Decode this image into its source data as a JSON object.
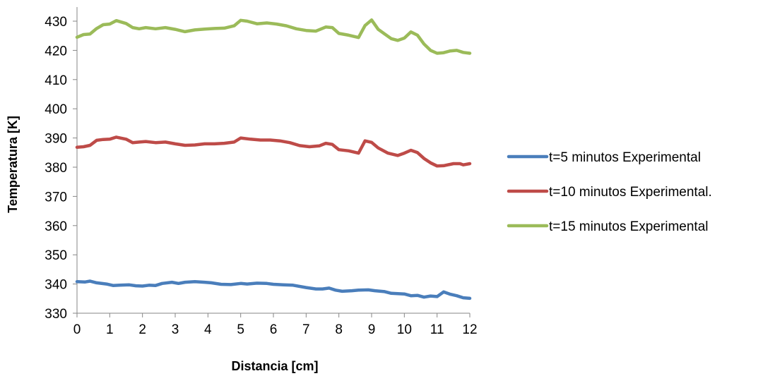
{
  "chart_data": {
    "type": "line",
    "title": "",
    "xlabel": "Distancia [cm]",
    "ylabel": "Temperatura [K]",
    "xlim": [
      0,
      12
    ],
    "ylim": [
      330,
      430
    ],
    "xticks": [
      0,
      1,
      2,
      3,
      4,
      5,
      6,
      7,
      8,
      9,
      10,
      11,
      12
    ],
    "yticks": [
      330,
      340,
      350,
      360,
      370,
      380,
      390,
      400,
      410,
      420,
      430
    ],
    "grid": false,
    "legend_position": "right",
    "series": [
      {
        "name": "t=5 minutos Experimental",
        "color": "#4A7EBB",
        "points": [
          [
            0,
            340.8
          ],
          [
            0.25,
            340.7
          ],
          [
            0.4,
            341.0
          ],
          [
            0.6,
            340.4
          ],
          [
            0.9,
            340.0
          ],
          [
            1.1,
            339.5
          ],
          [
            1.3,
            339.6
          ],
          [
            1.6,
            339.7
          ],
          [
            1.8,
            339.4
          ],
          [
            2.0,
            339.3
          ],
          [
            2.2,
            339.6
          ],
          [
            2.4,
            339.5
          ],
          [
            2.6,
            340.2
          ],
          [
            2.9,
            340.6
          ],
          [
            3.1,
            340.2
          ],
          [
            3.3,
            340.6
          ],
          [
            3.6,
            340.8
          ],
          [
            3.9,
            340.6
          ],
          [
            4.1,
            340.4
          ],
          [
            4.4,
            339.9
          ],
          [
            4.7,
            339.8
          ],
          [
            5.0,
            340.2
          ],
          [
            5.2,
            340.0
          ],
          [
            5.5,
            340.3
          ],
          [
            5.8,
            340.2
          ],
          [
            6.0,
            339.9
          ],
          [
            6.3,
            339.7
          ],
          [
            6.6,
            339.6
          ],
          [
            7.0,
            338.8
          ],
          [
            7.3,
            338.3
          ],
          [
            7.5,
            338.3
          ],
          [
            7.7,
            338.6
          ],
          [
            7.9,
            337.9
          ],
          [
            8.1,
            337.5
          ],
          [
            8.4,
            337.7
          ],
          [
            8.6,
            337.9
          ],
          [
            8.9,
            338.0
          ],
          [
            9.1,
            337.7
          ],
          [
            9.4,
            337.4
          ],
          [
            9.6,
            336.8
          ],
          [
            10.0,
            336.6
          ],
          [
            10.2,
            336.0
          ],
          [
            10.4,
            336.1
          ],
          [
            10.6,
            335.5
          ],
          [
            10.8,
            335.9
          ],
          [
            11.0,
            335.7
          ],
          [
            11.2,
            337.3
          ],
          [
            11.4,
            336.5
          ],
          [
            11.6,
            336.0
          ],
          [
            11.8,
            335.3
          ],
          [
            12.0,
            335.1
          ]
        ]
      },
      {
        "name": "t=10 minutos Experimental.",
        "color": "#BE4B48",
        "points": [
          [
            0,
            386.8
          ],
          [
            0.2,
            387.0
          ],
          [
            0.4,
            387.5
          ],
          [
            0.6,
            389.2
          ],
          [
            0.8,
            389.5
          ],
          [
            1.0,
            389.6
          ],
          [
            1.2,
            390.3
          ],
          [
            1.5,
            389.6
          ],
          [
            1.7,
            388.4
          ],
          [
            1.9,
            388.6
          ],
          [
            2.1,
            388.8
          ],
          [
            2.4,
            388.4
          ],
          [
            2.7,
            388.6
          ],
          [
            3.0,
            388.0
          ],
          [
            3.3,
            387.5
          ],
          [
            3.6,
            387.6
          ],
          [
            3.9,
            388.0
          ],
          [
            4.2,
            388.0
          ],
          [
            4.5,
            388.2
          ],
          [
            4.8,
            388.6
          ],
          [
            5.0,
            390.0
          ],
          [
            5.3,
            389.6
          ],
          [
            5.6,
            389.3
          ],
          [
            5.9,
            389.3
          ],
          [
            6.2,
            389.0
          ],
          [
            6.5,
            388.4
          ],
          [
            6.8,
            387.4
          ],
          [
            7.1,
            387.0
          ],
          [
            7.4,
            387.3
          ],
          [
            7.6,
            388.2
          ],
          [
            7.8,
            387.8
          ],
          [
            8.0,
            386.0
          ],
          [
            8.3,
            385.6
          ],
          [
            8.6,
            384.8
          ],
          [
            8.8,
            389.0
          ],
          [
            9.0,
            388.5
          ],
          [
            9.2,
            386.6
          ],
          [
            9.5,
            384.8
          ],
          [
            9.8,
            384.0
          ],
          [
            10.0,
            384.8
          ],
          [
            10.2,
            385.8
          ],
          [
            10.4,
            385.0
          ],
          [
            10.6,
            383.0
          ],
          [
            10.8,
            381.5
          ],
          [
            11.0,
            380.4
          ],
          [
            11.2,
            380.5
          ],
          [
            11.5,
            381.2
          ],
          [
            11.7,
            381.2
          ],
          [
            11.8,
            380.8
          ],
          [
            12.0,
            381.2
          ]
        ]
      },
      {
        "name": "t=15 minutos Experimental",
        "color": "#9BBB59",
        "points": [
          [
            0,
            424.5
          ],
          [
            0.2,
            425.4
          ],
          [
            0.4,
            425.6
          ],
          [
            0.6,
            427.5
          ],
          [
            0.8,
            428.8
          ],
          [
            1.0,
            429.0
          ],
          [
            1.2,
            430.2
          ],
          [
            1.5,
            429.2
          ],
          [
            1.7,
            427.8
          ],
          [
            1.9,
            427.4
          ],
          [
            2.1,
            427.8
          ],
          [
            2.4,
            427.4
          ],
          [
            2.7,
            427.8
          ],
          [
            3.0,
            427.2
          ],
          [
            3.3,
            426.4
          ],
          [
            3.6,
            427.0
          ],
          [
            3.9,
            427.3
          ],
          [
            4.2,
            427.5
          ],
          [
            4.5,
            427.6
          ],
          [
            4.8,
            428.4
          ],
          [
            5.0,
            430.3
          ],
          [
            5.2,
            430.0
          ],
          [
            5.5,
            429.1
          ],
          [
            5.8,
            429.4
          ],
          [
            6.1,
            429.0
          ],
          [
            6.4,
            428.4
          ],
          [
            6.7,
            427.4
          ],
          [
            7.0,
            426.8
          ],
          [
            7.3,
            426.6
          ],
          [
            7.6,
            428.0
          ],
          [
            7.8,
            427.8
          ],
          [
            8.0,
            425.8
          ],
          [
            8.3,
            425.2
          ],
          [
            8.6,
            424.4
          ],
          [
            8.8,
            428.5
          ],
          [
            9.0,
            430.4
          ],
          [
            9.2,
            427.2
          ],
          [
            9.4,
            425.6
          ],
          [
            9.6,
            424.0
          ],
          [
            9.8,
            423.4
          ],
          [
            10.0,
            424.2
          ],
          [
            10.2,
            426.3
          ],
          [
            10.4,
            425.2
          ],
          [
            10.6,
            422.2
          ],
          [
            10.8,
            420.0
          ],
          [
            11.0,
            419.0
          ],
          [
            11.2,
            419.2
          ],
          [
            11.4,
            419.8
          ],
          [
            11.6,
            420.0
          ],
          [
            11.8,
            419.3
          ],
          [
            12.0,
            419.0
          ]
        ]
      }
    ]
  }
}
